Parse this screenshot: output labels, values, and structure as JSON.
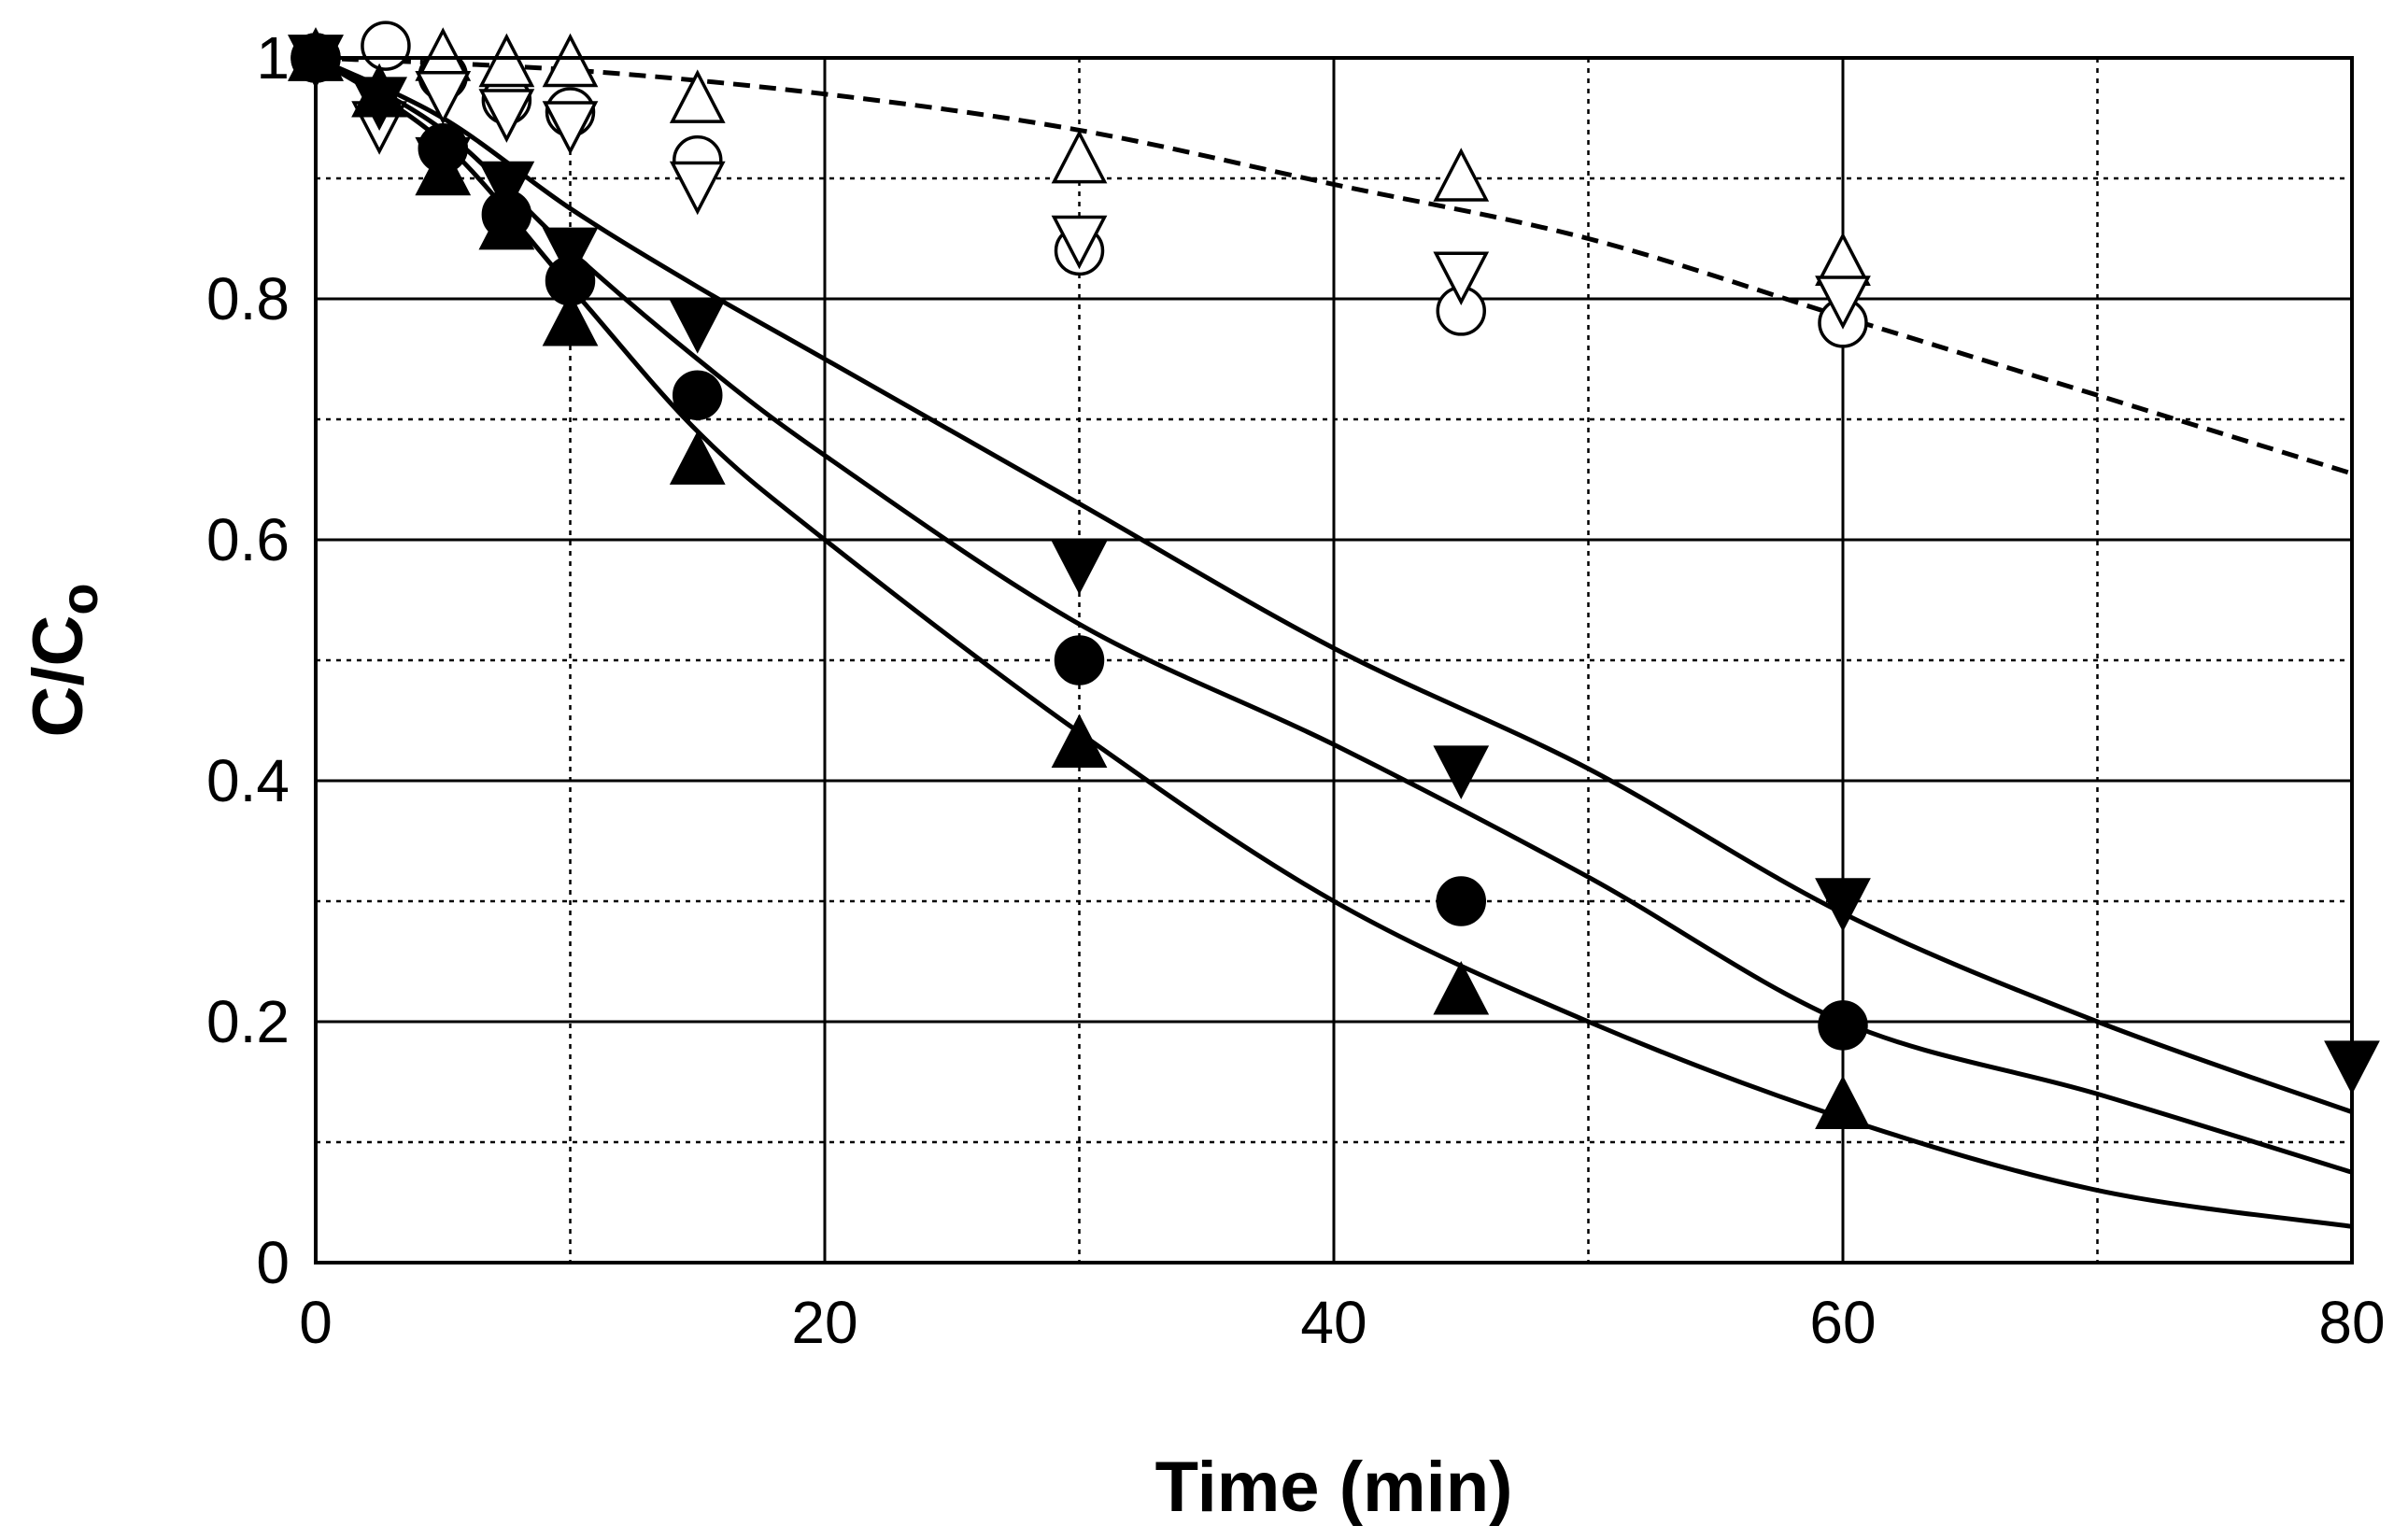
{
  "chart_data": {
    "type": "scatter",
    "title": "",
    "xlabel": "Time (min)",
    "ylabel_main": "C/C",
    "ylabel_sub": "o",
    "xlim": [
      0,
      80
    ],
    "ylim": [
      0,
      1
    ],
    "x_major_ticks": [
      0,
      20,
      40,
      60,
      80
    ],
    "x_tick_labels": [
      "0",
      "20",
      "40",
      "60",
      "80"
    ],
    "x_minor_gridlines": [
      10,
      30,
      50,
      70
    ],
    "y_major_ticks": [
      0,
      0.2,
      0.4,
      0.6,
      0.8,
      1
    ],
    "y_tick_labels": [
      "0",
      "0.2",
      "0.4",
      "0.6",
      "0.8",
      "1"
    ],
    "y_minor_gridlines": [
      0.1,
      0.3,
      0.5,
      0.7,
      0.9
    ],
    "grid": true,
    "series": [
      {
        "name": "filled circle",
        "marker": "circle",
        "filled": true,
        "x": [
          0,
          5,
          7.5,
          10,
          15,
          30,
          45,
          60
        ],
        "y": [
          1.0,
          0.925,
          0.87,
          0.815,
          0.72,
          0.5,
          0.3,
          0.197
        ]
      },
      {
        "name": "filled triangle up",
        "marker": "triangle-up",
        "filled": true,
        "x": [
          0,
          2.5,
          5,
          7.5,
          10,
          15,
          30,
          45,
          60
        ],
        "y": [
          1.0,
          0.97,
          0.905,
          0.86,
          0.78,
          0.665,
          0.43,
          0.225,
          0.13
        ]
      },
      {
        "name": "filled triangle down",
        "marker": "triangle-down",
        "filled": true,
        "x": [
          0,
          2.5,
          5,
          7.5,
          10,
          15,
          30,
          45,
          60,
          80
        ],
        "y": [
          1.0,
          0.965,
          0.915,
          0.895,
          0.84,
          0.78,
          0.58,
          0.41,
          0.3,
          0.165
        ]
      },
      {
        "name": "open circle",
        "marker": "circle",
        "filled": false,
        "x": [
          0,
          2.75,
          5,
          7.5,
          10,
          15,
          30,
          45,
          60
        ],
        "y": [
          1.0,
          1.01,
          0.985,
          0.965,
          0.955,
          0.915,
          0.84,
          0.79,
          0.78
        ]
      },
      {
        "name": "open triangle up",
        "marker": "triangle-up",
        "filled": false,
        "x": [
          0,
          2.5,
          5,
          7.5,
          10,
          15,
          30,
          45,
          60
        ],
        "y": [
          1.0,
          0.97,
          1.0,
          0.995,
          0.995,
          0.965,
          0.915,
          0.9,
          0.83
        ]
      },
      {
        "name": "open triangle down",
        "marker": "triangle-down",
        "filled": false,
        "x": [
          0,
          2.5,
          5,
          7.5,
          10,
          15,
          30,
          45,
          60
        ],
        "y": [
          1.0,
          0.945,
          0.97,
          0.955,
          0.945,
          0.895,
          0.85,
          0.82,
          0.8
        ]
      }
    ],
    "fit_curves": [
      {
        "name": "model fit (filled triangle up)",
        "style": "solid",
        "x": [
          0,
          5,
          10,
          15,
          20,
          30,
          40,
          50,
          60,
          70,
          80
        ],
        "y": [
          1.0,
          0.93,
          0.81,
          0.69,
          0.6,
          0.44,
          0.3,
          0.2,
          0.12,
          0.06,
          0.03
        ]
      },
      {
        "name": "model fit (filled circle)",
        "style": "solid",
        "x": [
          0,
          5,
          10,
          15,
          20,
          30,
          40,
          50,
          60,
          70,
          80
        ],
        "y": [
          1.0,
          0.94,
          0.84,
          0.75,
          0.67,
          0.53,
          0.43,
          0.32,
          0.2,
          0.14,
          0.075
        ]
      },
      {
        "name": "model fit (filled triangle down)",
        "style": "solid",
        "x": [
          0,
          5,
          10,
          15,
          20,
          30,
          40,
          50,
          60,
          70,
          80
        ],
        "y": [
          1.0,
          0.95,
          0.875,
          0.81,
          0.75,
          0.63,
          0.51,
          0.41,
          0.29,
          0.2,
          0.125
        ]
      },
      {
        "name": "model fit (open symbols)",
        "style": "dashed",
        "x": [
          0,
          10,
          20,
          30,
          40,
          50,
          60,
          70,
          80
        ],
        "y": [
          1.0,
          0.99,
          0.97,
          0.94,
          0.895,
          0.85,
          0.785,
          0.72,
          0.655
        ]
      }
    ]
  }
}
